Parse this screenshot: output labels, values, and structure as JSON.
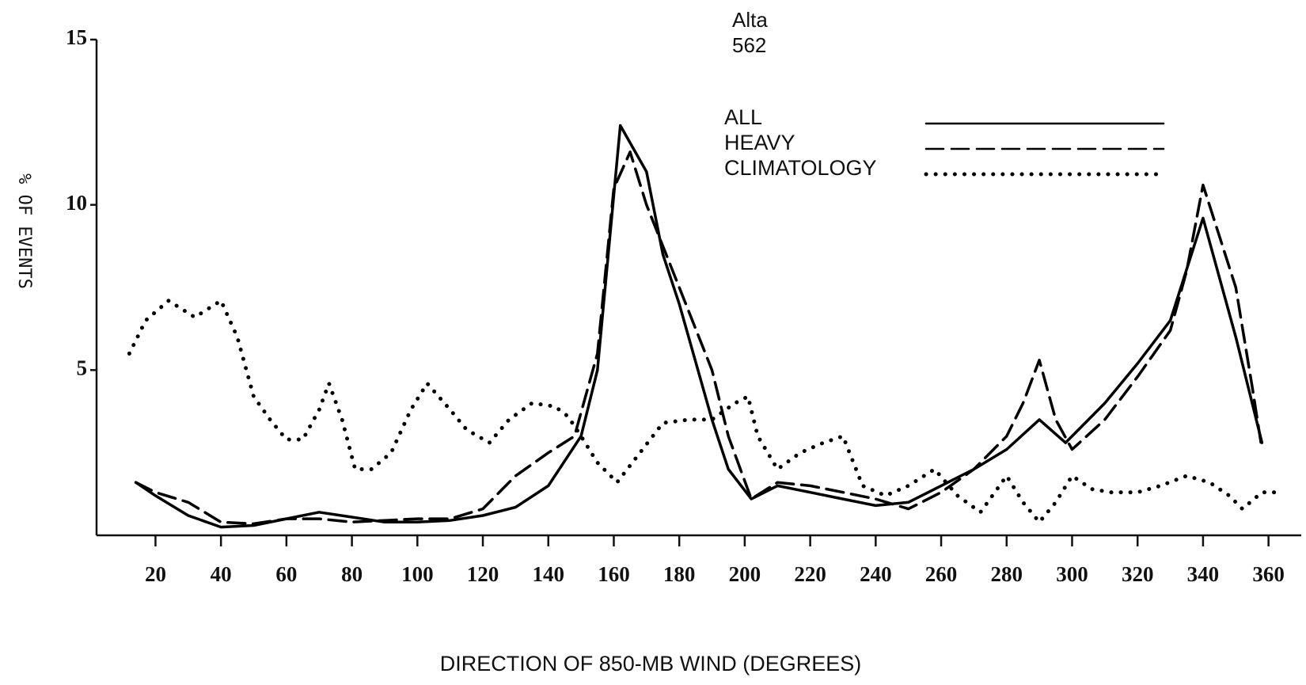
{
  "chart_data": {
    "type": "line",
    "title": "Alta",
    "subtitle": "562",
    "x_label": "DIRECTION OF 850-MB WIND (DEGREES)",
    "y_label": "% OF EVENTS",
    "xlim": [
      2,
      370
    ],
    "ylim": [
      0,
      15
    ],
    "xticks": [
      20,
      40,
      60,
      80,
      100,
      120,
      140,
      160,
      180,
      200,
      220,
      240,
      260,
      280,
      300,
      320,
      340,
      360
    ],
    "yticks": [
      5,
      10,
      15
    ],
    "legend": "top right",
    "series": [
      {
        "name": "ALL",
        "color": "#000000",
        "style": "solid",
        "x": [
          14,
          20,
          30,
          40,
          50,
          60,
          70,
          80,
          90,
          100,
          110,
          120,
          130,
          140,
          150,
          155,
          162,
          170,
          175,
          180,
          190,
          195,
          202,
          210,
          220,
          230,
          240,
          250,
          260,
          270,
          280,
          290,
          298,
          310,
          320,
          330,
          340,
          350,
          358
        ],
        "values": [
          1.6,
          1.2,
          0.6,
          0.25,
          0.3,
          0.5,
          0.7,
          0.55,
          0.4,
          0.4,
          0.45,
          0.6,
          0.85,
          1.5,
          3.0,
          5.0,
          12.4,
          11.0,
          8.5,
          7.0,
          3.5,
          2.0,
          1.1,
          1.5,
          1.3,
          1.1,
          0.9,
          1.0,
          1.5,
          2.0,
          2.6,
          3.5,
          2.8,
          4.0,
          5.2,
          6.5,
          9.6,
          6.0,
          2.8
        ]
      },
      {
        "name": "HEAVY",
        "color": "#000000",
        "style": "dashed",
        "x": [
          14,
          20,
          30,
          40,
          50,
          60,
          70,
          80,
          90,
          100,
          110,
          120,
          130,
          140,
          148,
          155,
          160,
          165,
          170,
          180,
          190,
          195,
          202,
          210,
          220,
          230,
          240,
          250,
          260,
          270,
          280,
          285,
          290,
          295,
          300,
          310,
          320,
          330,
          335,
          340,
          350,
          355,
          358
        ],
        "values": [
          1.6,
          1.3,
          1.0,
          0.4,
          0.35,
          0.5,
          0.5,
          0.4,
          0.45,
          0.5,
          0.5,
          0.8,
          1.8,
          2.5,
          3.0,
          5.5,
          10.5,
          11.6,
          10.0,
          7.5,
          5.0,
          3.0,
          1.1,
          1.6,
          1.5,
          1.3,
          1.1,
          0.8,
          1.3,
          2.0,
          3.0,
          4.0,
          5.3,
          3.5,
          2.6,
          3.5,
          4.8,
          6.2,
          8.0,
          10.6,
          7.5,
          4.5,
          2.6
        ]
      },
      {
        "name": "CLIMATOLOGY",
        "color": "#000000",
        "style": "dotted",
        "x": [
          12,
          17,
          24,
          32,
          40,
          45,
          50,
          55,
          60,
          65,
          70,
          73,
          77,
          81,
          86,
          92,
          98,
          103,
          110,
          115,
          122,
          128,
          135,
          142,
          146,
          150,
          155,
          161,
          168,
          175,
          183,
          190,
          197,
          201,
          204,
          210,
          217,
          224,
          230,
          236,
          243,
          250,
          258,
          265,
          272,
          280,
          285,
          290,
          295,
          300,
          306,
          312,
          320,
          327,
          335,
          342,
          348,
          352,
          358,
          363
        ],
        "values": [
          5.5,
          6.5,
          7.1,
          6.6,
          7.1,
          6.0,
          4.2,
          3.5,
          2.9,
          2.9,
          3.8,
          4.6,
          3.5,
          2.0,
          2.0,
          2.5,
          3.8,
          4.6,
          3.8,
          3.2,
          2.8,
          3.5,
          4.0,
          3.9,
          3.6,
          3.0,
          2.2,
          1.6,
          2.5,
          3.4,
          3.5,
          3.5,
          4.0,
          4.2,
          3.0,
          2.0,
          2.5,
          2.8,
          3.0,
          1.5,
          1.2,
          1.5,
          2.0,
          1.2,
          0.7,
          1.8,
          1.0,
          0.4,
          1.0,
          1.8,
          1.4,
          1.3,
          1.3,
          1.5,
          1.8,
          1.6,
          1.2,
          0.8,
          1.3,
          1.3
        ]
      }
    ]
  }
}
